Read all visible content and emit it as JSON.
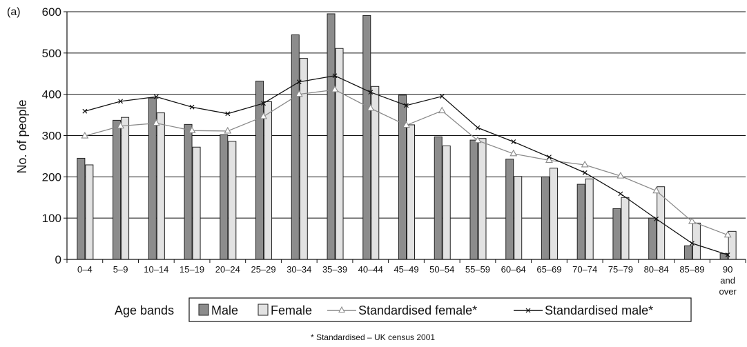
{
  "chart_data": {
    "type": "bar",
    "panel_label": "(a)",
    "ylabel": "No. of people",
    "xlabel": "",
    "ylim": [
      0,
      600
    ],
    "yticks": [
      0,
      100,
      200,
      300,
      400,
      500,
      600
    ],
    "grid": true,
    "categories": [
      "0–4",
      "5–9",
      "10–14",
      "15–19",
      "20–24",
      "25–29",
      "30–34",
      "35–39",
      "40–44",
      "45–49",
      "50–54",
      "55–59",
      "60–64",
      "65–69",
      "70–74",
      "75–79",
      "80–84",
      "85–89",
      "90 and over"
    ],
    "series": [
      {
        "name": "Male",
        "kind": "bar",
        "color": "#8c8c8c",
        "values": [
          245,
          337,
          391,
          327,
          302,
          432,
          544,
          595,
          591,
          398,
          297,
          289,
          243,
          200,
          182,
          123,
          100,
          33,
          14
        ]
      },
      {
        "name": "Female",
        "kind": "bar",
        "color": "#e2e2e2",
        "values": [
          229,
          344,
          355,
          272,
          286,
          382,
          487,
          511,
          419,
          326,
          275,
          293,
          201,
          221,
          195,
          150,
          176,
          88,
          68
        ]
      },
      {
        "name": "Standardised female*",
        "kind": "line",
        "marker": "triangle",
        "color": "#8a8a8a",
        "values": [
          299,
          323,
          330,
          312,
          311,
          346,
          400,
          411,
          366,
          325,
          360,
          288,
          256,
          240,
          229,
          202,
          166,
          92,
          59
        ]
      },
      {
        "name": "Standardised male*",
        "kind": "line",
        "marker": "x",
        "color": "#111111",
        "values": [
          359,
          383,
          394,
          369,
          353,
          378,
          430,
          445,
          405,
          373,
          395,
          319,
          285,
          248,
          210,
          159,
          98,
          39,
          11
        ]
      }
    ],
    "legend": {
      "title": "Age bands",
      "placement": "bottom"
    },
    "footnote": "* Standardised – UK census 2001"
  }
}
